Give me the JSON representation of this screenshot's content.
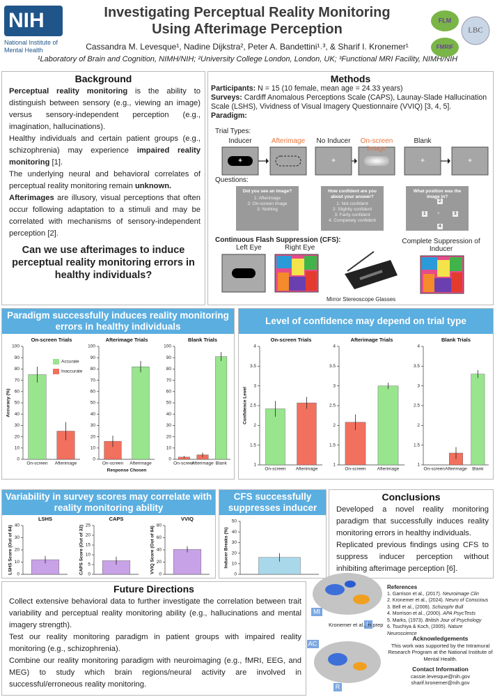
{
  "header": {
    "logo": "NIH",
    "logo_subtitle": "National Institute of Mental Health",
    "title_lines": [
      "Investigating Perceptual Reality Monitoring",
      "Using Afterimage Perception"
    ],
    "authors": "Cassandra M. Levesque¹, Nadine Dijkstra², Peter A. Bandettini¹˒³, & Sharif I. Kronemer¹",
    "affiliations": "¹Laboratory of Brain and Cognition, NIMH/NIH; ²University College London, London, UK; ³Functional MRI Facility, NIMH/NIH",
    "logos": [
      "FLM",
      "LBC",
      "FMRIF"
    ]
  },
  "background": {
    "heading": "Background",
    "bullets": [
      [
        {
          "text": "Perceptual reality monitoring",
          "bold": true
        },
        {
          "text": " is the ability to distinguish between sensory (e.g., viewing an image) versus sensory-independent perception (e.g., imagination, hallucinations)."
        }
      ],
      [
        {
          "text": "Healthy individuals and certain patient groups (e.g., schizophrenia) may experience "
        },
        {
          "text": "impaired reality monitoring",
          "bold": true
        },
        {
          "text": " [1]."
        }
      ],
      [
        {
          "text": "The underlying neural and behavioral correlates of perceptual reality monitoring remain "
        },
        {
          "text": "unknown.",
          "bold": true
        }
      ],
      [
        {
          "text": "Afterimages",
          "bold": true
        },
        {
          "text": " are illusory, visual perceptions that often occur following adaptation to a stimuli and may be correlated with mechanisms of sensory-independent perception [2]."
        }
      ]
    ],
    "question": "Can we use afterimages to induce perceptual reality monitoring errors in healthy individuals?"
  },
  "methods": {
    "heading": "Methods",
    "lines": [
      [
        {
          "text": "Participants:",
          "bold": true
        },
        {
          "text": " N = 15 (10 female, mean age = 24.33 years)"
        }
      ],
      [
        {
          "text": "Surveys:",
          "bold": true
        },
        {
          "text": " Cardiff Anomalous Perceptions Scale (CAPS), Launay-Slade Hallucination Scale (LSHS), Vividness of Visual Imagery Questionnaire (VVIQ) [3, 4, 5]."
        }
      ],
      [
        {
          "text": "Paradigm:",
          "bold": true
        }
      ]
    ],
    "trial_types_label": "Trial Types:",
    "highlight_color": "#e8743b",
    "trial_types": [
      {
        "label": "Inducer",
        "highlight": false
      },
      {
        "label": "Afterimage",
        "highlight": true
      },
      {
        "label": "No Inducer",
        "highlight": false
      },
      {
        "label": "On-screen Image",
        "highlight": true
      },
      {
        "label": "Blank",
        "highlight": false
      }
    ],
    "fixation": "+",
    "questions_label": "Questions:",
    "questions": [
      {
        "title": "Did you see an image?",
        "options": [
          "1: Afterimage",
          "2: On-screen image",
          "3: Nothing"
        ]
      },
      {
        "title": "How confident are you about your answer?",
        "options": [
          "1: Not confident",
          "2: Slightly confident",
          "3: Fairly confident",
          "4: Completely confident"
        ]
      },
      {
        "title": "What position was the image in?",
        "options": [
          "1",
          "2",
          "3",
          "4"
        ]
      }
    ],
    "cfs_label": "Continuous Flash Suppression (CFS):",
    "left_eye": "Left Eye",
    "right_eye": "Right Eye",
    "glasses": "Mirror Stereoscope Glasses",
    "suppression": "Complete Suppression of Inducer"
  },
  "panels": {
    "paradigm": "Paradigm successfully induces reality monitoring errors in healthy individuals",
    "confidence": "Level of confidence may depend on trial type",
    "variability": "Variability in survey scores may correlate with reality monitoring ability",
    "cfs": "CFS successfully suppresses inducer",
    "conclusions": "Conclusions",
    "future": "Future Directions"
  },
  "chart_data": [
    {
      "type": "bar",
      "title": "On-screen Trials",
      "ylabel": "Accuracy (%)",
      "categories": [
        "On-screen",
        "Afterimage"
      ],
      "values": [
        75,
        25
      ],
      "errors": [
        7,
        8
      ],
      "colors": [
        "#98e58e",
        "#f2705e"
      ],
      "ylim": [
        0,
        100
      ],
      "yticks": [
        0,
        10,
        20,
        30,
        40,
        50,
        60,
        70,
        80,
        90,
        100
      ],
      "legend": [
        {
          "name": "Accurate",
          "color": "#98e58e"
        },
        {
          "name": "Inaccurate",
          "color": "#f2705e"
        }
      ]
    },
    {
      "type": "bar",
      "title": "Afterimage Trials",
      "xlabel": "Response Chosen",
      "categories": [
        "On-screen",
        "Afterimage"
      ],
      "values": [
        16,
        82
      ],
      "errors": [
        5,
        5
      ],
      "colors": [
        "#f2705e",
        "#98e58e"
      ],
      "ylim": [
        0,
        100
      ],
      "yticks": [
        0,
        10,
        20,
        30,
        40,
        50,
        60,
        70,
        80,
        90,
        100
      ]
    },
    {
      "type": "bar",
      "title": "Blank Trials",
      "categories": [
        "On-screen",
        "Afterimage",
        "Blank"
      ],
      "values": [
        2,
        4,
        91
      ],
      "errors": [
        1,
        2,
        4
      ],
      "colors": [
        "#f2705e",
        "#f2705e",
        "#98e58e"
      ],
      "ylim": [
        0,
        100
      ],
      "yticks": [
        0,
        10,
        20,
        30,
        40,
        50,
        60,
        70,
        80,
        90,
        100
      ]
    },
    {
      "type": "bar",
      "title": "On-screen Trials",
      "ylabel": "Confidence Level",
      "categories": [
        "On-screen",
        "Afterimage"
      ],
      "values": [
        2.42,
        2.57
      ],
      "errors": [
        0.2,
        0.15
      ],
      "colors": [
        "#98e58e",
        "#f2705e"
      ],
      "ylim": [
        1,
        4
      ],
      "yticks": [
        1,
        1.5,
        2,
        2.5,
        3,
        3.5,
        4
      ]
    },
    {
      "type": "bar",
      "title": "Afterimage Trials",
      "categories": [
        "On-screen",
        "Afterimage"
      ],
      "values": [
        2.08,
        3.0
      ],
      "errors": [
        0.2,
        0.08
      ],
      "colors": [
        "#f2705e",
        "#98e58e"
      ],
      "ylim": [
        1,
        4
      ],
      "yticks": [
        1,
        1.5,
        2,
        2.5,
        3,
        3.5,
        4
      ]
    },
    {
      "type": "bar",
      "title": "Blank Trials",
      "categories": [
        "On-screen",
        "Afterimage",
        "Blank"
      ],
      "values": [
        null,
        1.3,
        3.3
      ],
      "errors": [
        null,
        0.15,
        0.1
      ],
      "colors": [
        "#f2705e",
        "#f2705e",
        "#98e58e"
      ],
      "ylim": [
        1,
        4
      ],
      "yticks": [
        1,
        1.5,
        2,
        2.5,
        3,
        3.5,
        4
      ]
    },
    {
      "type": "bar",
      "title": "LSHS",
      "ylabel": "LSHS Score (Out of 64)",
      "categories": [
        null
      ],
      "values": [
        12
      ],
      "errors": [
        3
      ],
      "colors": [
        "#c8a2e6"
      ],
      "ylim": [
        0,
        40
      ],
      "yticks": [
        0,
        10,
        20,
        30,
        40
      ]
    },
    {
      "type": "bar",
      "title": "CAPS",
      "ylabel": "CAPS Score (Out of 32)",
      "categories": [
        null
      ],
      "values": [
        7
      ],
      "errors": [
        2
      ],
      "colors": [
        "#c8a2e6"
      ],
      "ylim": [
        0,
        25
      ],
      "yticks": [
        0,
        5,
        10,
        15,
        20,
        25
      ]
    },
    {
      "type": "bar",
      "title": "VVIQ",
      "ylabel": "VVIQ Score (Out of 64)",
      "categories": [
        null
      ],
      "values": [
        41
      ],
      "errors": [
        5
      ],
      "colors": [
        "#c8a2e6"
      ],
      "ylim": [
        0,
        80
      ],
      "yticks": [
        0,
        20,
        40,
        60,
        80
      ]
    },
    {
      "type": "bar",
      "ylabel": "Inducer Breaks (%)",
      "categories": [
        null
      ],
      "values": [
        16
      ],
      "errors": [
        4
      ],
      "colors": [
        "#a8d8ea"
      ],
      "ylim": [
        0,
        50
      ],
      "yticks": [
        0,
        10,
        20,
        30,
        40,
        50
      ]
    }
  ],
  "conclusions": [
    [
      {
        "text": "Developed a novel reality monitoring paradigm that successfully induces reality monitoring errors in healthy individuals."
      }
    ],
    [
      {
        "text": "Replicated previous findings using CFS to suppress inducer perception without inhibiting afterimage perception [6]."
      }
    ]
  ],
  "future": [
    [
      {
        "text": "Collect extensive behavioral data to further investigate the correlation between trait variability and perceptual reality monitoring ability (e.g., hallucinations and mental imagery strength)."
      }
    ],
    [
      {
        "text": "Test our reality monitoring paradigm in patient groups with impaired reality monitoring (e.g., schizophrenia)."
      }
    ],
    [
      {
        "text": "Combine our reality monitoring paradigm with neuroimaging (e.g., fMRI, EEG, and MEG) to study which brain regions/neural activity are involved in successful/erroneous reality monitoring."
      }
    ]
  ],
  "brain": {
    "labels": [
      "MI",
      "L",
      "AC",
      "R"
    ],
    "credit": "Kronemer et al., in prep"
  },
  "references": {
    "heading": "References",
    "items": [
      [
        {
          "text": "1. Garrison et al., (2017). "
        },
        {
          "text": "Neuroimage Clin",
          "italic": true
        }
      ],
      [
        {
          "text": "2. Kronemer et al., (2024). "
        },
        {
          "text": "Neuro of Conscious",
          "italic": true
        }
      ],
      [
        {
          "text": "3. Bell et al., (2006). "
        },
        {
          "text": "Schizophr Bull",
          "italic": true
        }
      ],
      [
        {
          "text": "4. Morrison et al., (2000). "
        },
        {
          "text": "APA PsycTests",
          "italic": true
        }
      ],
      [
        {
          "text": "5. Marks, (1973). "
        },
        {
          "text": "British Jour of Psychology",
          "italic": true
        }
      ],
      [
        {
          "text": "6. Tsuchiya & Koch, (2005). "
        },
        {
          "text": "Nature Neuroscience",
          "italic": true
        }
      ]
    ]
  },
  "acknowledgements": {
    "heading": "Acknowledgements",
    "text": "This work was supported by the Intramural Research Program at the National Institute of Mental Health."
  },
  "contact": {
    "heading": "Contact Information",
    "emails": [
      "cassie.levesque@nih.gov",
      "sharif.kronemer@nih.gov"
    ]
  }
}
